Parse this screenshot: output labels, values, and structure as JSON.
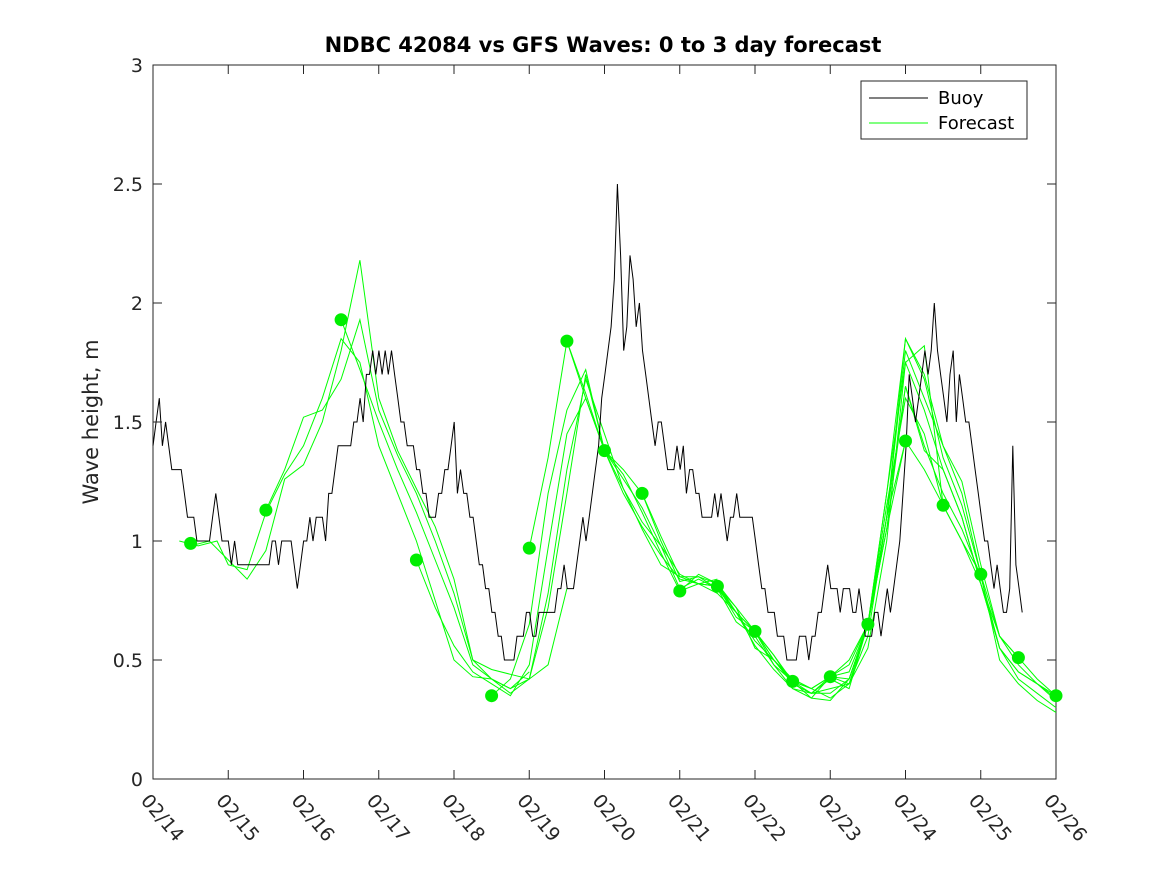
{
  "chart_data": {
    "type": "line",
    "title": "NDBC 42084 vs GFS Waves: 0 to 3 day forecast",
    "xlabel": "",
    "ylabel": "Wave height, m",
    "x_tick_labels": [
      "02/14",
      "02/15",
      "02/16",
      "02/17",
      "02/18",
      "02/19",
      "02/20",
      "02/21",
      "02/22",
      "02/23",
      "02/24",
      "02/25",
      "02/26"
    ],
    "xlim": [
      0,
      12
    ],
    "ylim": [
      0,
      3
    ],
    "y_ticks": [
      0,
      0.5,
      1,
      1.5,
      2,
      2.5,
      3
    ],
    "y_tick_labels": [
      "0",
      "0.5",
      "1",
      "1.5",
      "2",
      "2.5",
      "3"
    ],
    "legend": {
      "position": "top-right",
      "entries": [
        {
          "label": "Buoy",
          "color": "#000000"
        },
        {
          "label": "Forecast",
          "color": "#00ff00"
        }
      ]
    },
    "colors": {
      "buoy": "#000000",
      "forecast": "#00ff00",
      "markers": "#00ee00"
    },
    "series": [
      {
        "name": "Buoy",
        "x_start": 0.0,
        "x_step": 0.0417,
        "values": [
          1.4,
          1.5,
          1.6,
          1.4,
          1.5,
          1.4,
          1.3,
          1.3,
          1.3,
          1.3,
          1.2,
          1.1,
          1.1,
          1.1,
          1.0,
          1.0,
          1.0,
          1.0,
          1.0,
          1.1,
          1.2,
          1.1,
          1.0,
          1.0,
          1.0,
          0.9,
          1.0,
          0.9,
          0.9,
          0.9,
          0.9,
          0.9,
          0.9,
          0.9,
          0.9,
          0.9,
          0.9,
          0.9,
          1.0,
          1.0,
          0.9,
          1.0,
          1.0,
          1.0,
          1.0,
          0.9,
          0.8,
          0.9,
          1.0,
          1.0,
          1.1,
          1.0,
          1.1,
          1.1,
          1.1,
          1.0,
          1.2,
          1.2,
          1.3,
          1.4,
          1.4,
          1.4,
          1.4,
          1.4,
          1.5,
          1.5,
          1.6,
          1.5,
          1.7,
          1.7,
          1.8,
          1.7,
          1.8,
          1.7,
          1.8,
          1.7,
          1.8,
          1.7,
          1.6,
          1.5,
          1.5,
          1.4,
          1.4,
          1.4,
          1.3,
          1.3,
          1.2,
          1.2,
          1.1,
          1.1,
          1.1,
          1.2,
          1.2,
          1.3,
          1.3,
          1.4,
          1.5,
          1.2,
          1.3,
          1.2,
          1.2,
          1.1,
          1.1,
          1.0,
          0.9,
          0.9,
          0.8,
          0.8,
          0.7,
          0.7,
          0.6,
          0.6,
          0.5,
          0.5,
          0.5,
          0.5,
          0.6,
          0.6,
          0.6,
          0.7,
          0.7,
          0.6,
          0.6,
          0.7,
          0.7,
          0.7,
          0.7,
          0.7,
          0.7,
          0.8,
          0.8,
          0.9,
          0.8,
          0.8,
          0.8,
          0.9,
          1.0,
          1.1,
          1.0,
          1.1,
          1.2,
          1.3,
          1.4,
          1.6,
          1.7,
          1.8,
          1.9,
          2.1,
          2.5,
          2.2,
          1.8,
          1.9,
          2.2,
          2.1,
          1.9,
          2.0,
          1.8,
          1.7,
          1.6,
          1.5,
          1.4,
          1.5,
          1.5,
          1.4,
          1.3,
          1.3,
          1.3,
          1.4,
          1.3,
          1.4,
          1.2,
          1.3,
          1.3,
          1.2,
          1.2,
          1.1,
          1.1,
          1.1,
          1.1,
          1.2,
          1.1,
          1.2,
          1.1,
          1.0,
          1.1,
          1.1,
          1.2,
          1.1,
          1.1,
          1.1,
          1.1,
          1.1,
          1.0,
          0.9,
          0.8,
          0.8,
          0.7,
          0.7,
          0.7,
          0.6,
          0.6,
          0.6,
          0.5,
          0.5,
          0.5,
          0.5,
          0.6,
          0.6,
          0.6,
          0.5,
          0.6,
          0.6,
          0.7,
          0.7,
          0.8,
          0.9,
          0.8,
          0.8,
          0.8,
          0.7,
          0.8,
          0.8,
          0.8,
          0.7,
          0.7,
          0.8,
          0.7,
          0.6,
          0.6,
          0.6,
          0.7,
          0.7,
          0.6,
          0.7,
          0.8,
          0.7,
          0.8,
          0.9,
          1.0,
          1.2,
          1.4,
          1.7,
          1.6,
          1.5,
          1.6,
          1.7,
          1.8,
          1.7,
          1.8,
          2.0,
          1.8,
          1.7,
          1.6,
          1.5,
          1.7,
          1.8,
          1.5,
          1.7,
          1.6,
          1.5,
          1.5,
          1.4,
          1.3,
          1.2,
          1.1,
          1.0,
          1.0,
          0.9,
          0.8,
          0.9,
          0.8,
          0.7,
          0.7,
          0.8,
          1.4,
          0.9,
          0.8,
          0.7
        ]
      },
      {
        "name": "Forecast",
        "runs": [
          {
            "x": [
              0.35,
              0.6,
              0.85,
              1.0,
              1.25,
              1.5,
              1.75,
              2.0,
              2.25,
              2.5,
              2.75,
              3.0,
              3.25,
              3.5,
              3.75,
              4.0,
              4.25,
              4.5,
              4.75,
              5.0
            ],
            "values": [
              1.0,
              0.98,
              1.0,
              0.9,
              0.88,
              1.12,
              1.28,
              1.4,
              1.6,
              1.85,
              1.75,
              1.4,
              1.2,
              1.0,
              0.75,
              0.5,
              0.43,
              0.42,
              0.38,
              0.45
            ]
          },
          {
            "x": [
              0.5,
              0.75,
              1.0,
              1.25,
              1.5,
              1.75,
              2.0,
              2.25,
              2.5,
              2.75,
              3.0,
              3.25,
              3.5,
              3.75,
              4.0,
              4.25,
              4.5,
              4.75,
              5.0,
              5.25,
              5.5
            ],
            "values": [
              0.98,
              1.0,
              0.92,
              0.84,
              0.96,
              1.26,
              1.32,
              1.5,
              1.8,
              2.18,
              1.6,
              1.38,
              1.22,
              1.06,
              0.84,
              0.5,
              0.46,
              0.44,
              0.42,
              0.48,
              0.8
            ]
          },
          {
            "x": [
              1.5,
              1.75,
              2.0,
              2.25,
              2.5,
              2.75,
              3.0,
              3.25,
              3.5,
              3.75,
              4.0,
              4.25,
              4.5,
              4.75,
              5.0,
              5.25,
              5.5,
              5.75,
              6.0
            ],
            "values": [
              1.13,
              1.3,
              1.52,
              1.55,
              1.68,
              1.93,
              1.55,
              1.36,
              1.2,
              1.0,
              0.78,
              0.5,
              0.42,
              0.38,
              0.42,
              0.72,
              1.2,
              1.7,
              1.38
            ]
          },
          {
            "x": [
              2.5,
              2.75,
              3.0,
              3.25,
              3.5,
              3.75,
              4.0,
              4.25,
              4.5,
              4.75,
              5.0,
              5.25,
              5.5,
              5.75,
              6.0,
              6.25,
              6.5,
              6.75,
              7.0,
              7.25,
              7.5
            ],
            "values": [
              1.93,
              1.72,
              1.5,
              1.3,
              1.12,
              0.92,
              0.72,
              0.48,
              0.42,
              0.36,
              0.42,
              0.78,
              1.3,
              1.68,
              1.45,
              1.22,
              1.08,
              0.98,
              0.86,
              0.82,
              0.84
            ]
          },
          {
            "x": [
              3.5,
              3.75,
              4.0,
              4.25,
              4.5,
              4.75,
              5.0,
              5.25,
              5.5,
              5.75,
              6.0,
              6.25,
              6.5,
              6.75,
              7.0,
              7.25,
              7.5,
              7.75,
              8.0,
              8.25,
              8.5
            ],
            "values": [
              0.92,
              0.72,
              0.56,
              0.45,
              0.4,
              0.35,
              0.48,
              0.97,
              1.45,
              1.6,
              1.38,
              1.2,
              1.06,
              0.94,
              0.84,
              0.82,
              0.78,
              0.7,
              0.58,
              0.5,
              0.41
            ]
          },
          {
            "x": [
              4.5,
              4.75,
              5.0,
              5.25,
              5.5,
              5.75,
              6.0,
              6.25,
              6.5,
              6.75,
              7.0,
              7.25,
              7.5,
              7.75,
              8.0,
              8.25,
              8.5,
              8.75,
              9.0,
              9.25,
              9.5
            ],
            "values": [
              0.35,
              0.42,
              0.65,
              1.2,
              1.55,
              1.72,
              1.38,
              1.26,
              1.14,
              0.98,
              0.8,
              0.84,
              0.8,
              0.7,
              0.62,
              0.5,
              0.42,
              0.38,
              0.34,
              0.4,
              0.65
            ]
          },
          {
            "x": [
              5.0,
              5.25,
              5.5,
              5.75,
              6.0,
              6.25,
              6.5,
              6.75,
              7.0,
              7.25,
              7.5,
              7.75,
              8.0,
              8.25,
              8.5,
              8.75,
              9.0,
              9.25,
              9.5,
              9.75,
              10.0
            ],
            "values": [
              0.97,
              1.35,
              1.84,
              1.6,
              1.38,
              1.22,
              1.05,
              0.9,
              0.85,
              0.85,
              0.82,
              0.72,
              0.55,
              0.5,
              0.4,
              0.36,
              0.36,
              0.42,
              0.65,
              1.1,
              1.42
            ]
          },
          {
            "x": [
              5.5,
              5.75,
              6.0,
              6.25,
              6.5,
              6.75,
              7.0,
              7.25,
              7.5,
              7.75,
              8.0,
              8.25,
              8.5,
              8.75,
              9.0,
              9.25,
              9.5,
              9.75,
              10.0,
              10.25,
              10.5
            ],
            "values": [
              1.84,
              1.62,
              1.38,
              1.28,
              1.12,
              0.95,
              0.79,
              0.86,
              0.82,
              0.7,
              0.56,
              0.46,
              0.38,
              0.36,
              0.38,
              0.4,
              0.55,
              1.0,
              1.75,
              1.82,
              1.15
            ]
          },
          {
            "x": [
              6.0,
              6.25,
              6.5,
              6.75,
              7.0,
              7.25,
              7.5,
              7.75,
              8.0,
              8.25,
              8.5,
              8.75,
              9.0,
              9.25,
              9.5,
              9.75,
              10.0,
              10.25,
              10.5,
              10.75,
              11.0
            ],
            "values": [
              1.38,
              1.3,
              1.2,
              1.02,
              0.85,
              0.82,
              0.81,
              0.68,
              0.62,
              0.52,
              0.41,
              0.34,
              0.33,
              0.42,
              0.65,
              1.2,
              1.85,
              1.68,
              1.35,
              1.15,
              0.86
            ]
          },
          {
            "x": [
              6.5,
              6.75,
              7.0,
              7.25,
              7.5,
              7.75,
              8.0,
              8.25,
              8.5,
              8.75,
              9.0,
              9.25,
              9.5,
              9.75,
              10.0,
              10.25,
              10.5,
              10.75,
              11.0,
              11.25,
              11.5
            ],
            "values": [
              1.2,
              1.0,
              0.83,
              0.85,
              0.8,
              0.66,
              0.6,
              0.48,
              0.38,
              0.34,
              0.43,
              0.4,
              0.6,
              1.1,
              1.65,
              1.38,
              1.3,
              1.1,
              0.82,
              0.6,
              0.51
            ]
          },
          {
            "x": [
              7.0,
              7.25,
              7.5,
              7.75,
              8.0,
              8.25,
              8.5,
              8.75,
              9.0,
              9.25,
              9.5,
              9.75,
              10.0,
              10.25,
              10.5,
              10.75,
              11.0,
              11.25,
              11.5,
              11.75,
              12.0
            ],
            "values": [
              0.79,
              0.82,
              0.81,
              0.7,
              0.62,
              0.52,
              0.4,
              0.36,
              0.42,
              0.38,
              0.65,
              1.05,
              1.42,
              1.3,
              1.15,
              1.0,
              0.82,
              0.55,
              0.45,
              0.4,
              0.35
            ]
          },
          {
            "x": [
              7.5,
              7.75,
              8.0,
              8.25,
              8.5,
              8.75,
              9.0,
              9.25,
              9.5,
              9.75,
              10.0,
              10.25,
              10.5,
              10.75,
              11.0,
              11.25,
              11.5,
              11.75,
              12.0
            ],
            "values": [
              0.81,
              0.72,
              0.62,
              0.48,
              0.41,
              0.36,
              0.43,
              0.5,
              0.65,
              1.15,
              1.6,
              1.45,
              1.15,
              1.0,
              0.86,
              0.6,
              0.51,
              0.42,
              0.35
            ]
          },
          {
            "x": [
              8.0,
              8.25,
              8.5,
              8.75,
              9.0,
              9.25,
              9.5,
              9.75,
              10.0,
              10.25,
              10.5,
              10.75,
              11.0,
              11.25,
              11.5,
              11.75,
              12.0
            ],
            "values": [
              0.62,
              0.5,
              0.41,
              0.38,
              0.43,
              0.48,
              0.65,
              1.2,
              1.75,
              1.55,
              1.3,
              1.1,
              0.82,
              0.55,
              0.45,
              0.4,
              0.33
            ]
          },
          {
            "x": [
              8.5,
              8.75,
              9.0,
              9.25,
              9.5,
              9.75,
              10.0,
              10.25,
              10.5,
              10.75,
              11.0,
              11.25,
              11.5,
              11.75,
              12.0
            ],
            "values": [
              0.41,
              0.38,
              0.43,
              0.45,
              0.65,
              1.1,
              1.8,
              1.6,
              1.4,
              1.25,
              0.9,
              0.6,
              0.48,
              0.4,
              0.34
            ]
          },
          {
            "x": [
              9.0,
              9.25,
              9.5,
              9.75,
              10.0,
              10.25,
              10.5,
              10.75,
              11.0,
              11.25,
              11.5,
              11.75,
              12.0
            ],
            "values": [
              0.43,
              0.42,
              0.65,
              1.05,
              1.65,
              1.4,
              1.2,
              1.05,
              0.85,
              0.55,
              0.42,
              0.36,
              0.3
            ]
          },
          {
            "x": [
              9.5,
              9.75,
              10.0,
              10.25,
              10.5,
              10.75,
              11.0,
              11.25,
              11.5,
              11.75,
              12.0
            ],
            "values": [
              0.65,
              1.1,
              1.85,
              1.7,
              1.4,
              1.2,
              0.86,
              0.5,
              0.4,
              0.33,
              0.28
            ]
          }
        ]
      }
    ],
    "markers": {
      "name": "Forecast analysis points",
      "x": [
        0.5,
        1.5,
        2.5,
        3.5,
        4.5,
        5.0,
        5.5,
        6.0,
        6.5,
        7.0,
        7.5,
        8.0,
        8.5,
        9.0,
        9.5,
        10.0,
        10.5,
        11.0,
        11.5,
        12.0
      ],
      "values": [
        0.99,
        1.13,
        1.93,
        0.92,
        0.35,
        0.97,
        1.84,
        1.38,
        1.2,
        0.79,
        0.81,
        0.62,
        0.41,
        0.43,
        0.65,
        1.42,
        1.15,
        0.86,
        0.51,
        0.35
      ]
    }
  }
}
